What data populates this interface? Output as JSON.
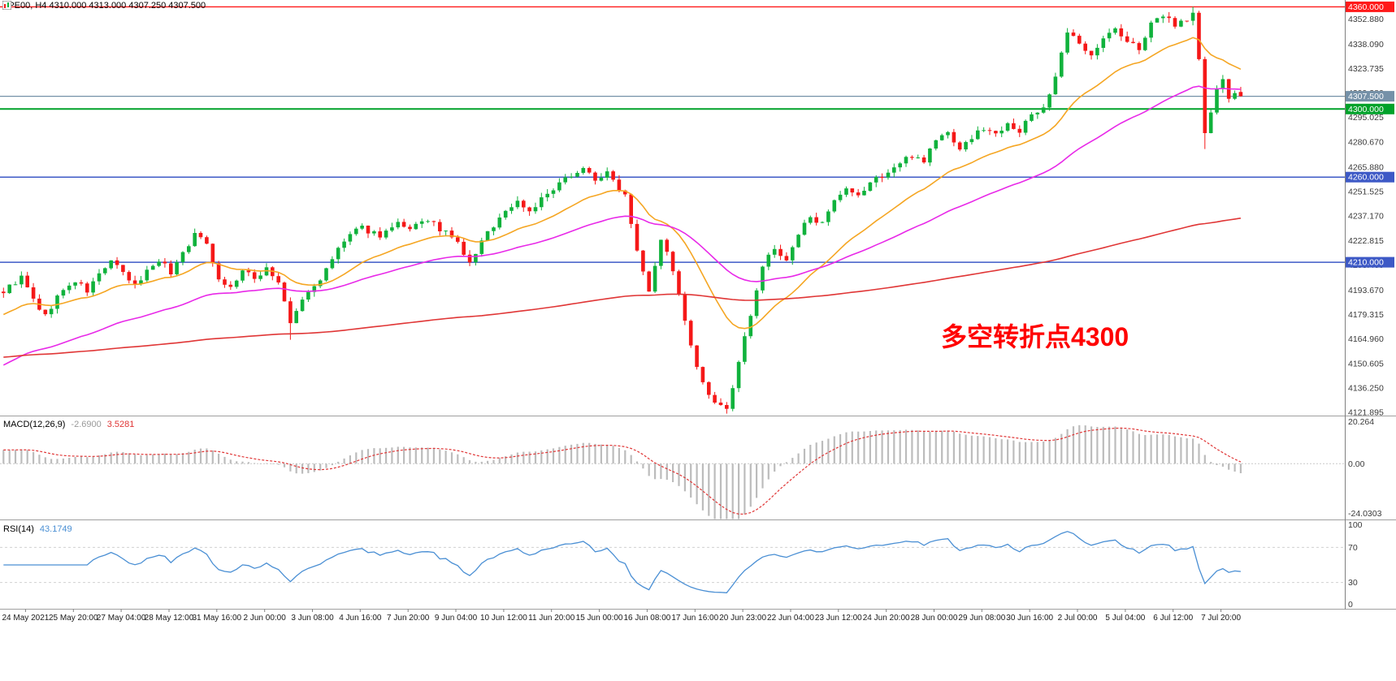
{
  "window": {
    "symbol_info": "SPE00, H4 4310.000 4313.000 4307.250 4307.500"
  },
  "annotation": {
    "text": "多空转折点4300"
  },
  "macd_panel": {
    "title": "MACD(12,26,9)",
    "main_value": "-2.6900",
    "signal_value": "3.5281"
  },
  "rsi_panel": {
    "title": "RSI(14)",
    "value": "43.1749"
  },
  "chart_data": {
    "type": "candlestick",
    "symbol": "SPE00",
    "timeframe": "H4",
    "last_ohlc": {
      "open": 4310.0,
      "high": 4313.0,
      "low": 4307.25,
      "close": 4307.5
    },
    "ylim": [
      4120.0,
      4364.0
    ],
    "up_color": "#10b23c",
    "down_color": "#f51818",
    "price_ticks": [
      "4352.880",
      "4338.090",
      "4323.735",
      "4309.380",
      "4295.025",
      "4280.670",
      "4265.880",
      "4251.525",
      "4237.170",
      "4222.815",
      "4208.460",
      "4193.670",
      "4179.315",
      "4164.960",
      "4150.605",
      "4136.250",
      "4121.895"
    ],
    "levels": [
      {
        "price": 4360.0,
        "label": "4360.000",
        "color": "#ff1a1a",
        "width": 1.4,
        "type": "resistance-line"
      },
      {
        "price": 4307.5,
        "label": "4307.500",
        "color": "#7591a8",
        "width": 1.2,
        "type": "last-price-line"
      },
      {
        "price": 4300.0,
        "label": "4300.000",
        "color": "#00a22a",
        "width": 2.0,
        "type": "pivot-line"
      },
      {
        "price": 4260.0,
        "label": "4260.000",
        "color": "#3d59c6",
        "width": 1.5,
        "type": "support-line"
      },
      {
        "price": 4210.0,
        "label": "4210.000",
        "color": "#3d59c6",
        "width": 1.5,
        "type": "support-line"
      }
    ],
    "x_labels": [
      "24 May 2021",
      "25 May 20:00",
      "27 May 04:00",
      "28 May 12:00",
      "31 May 16:00",
      "2 Jun 00:00",
      "3 Jun 08:00",
      "4 Jun 16:00",
      "7 Jun 20:00",
      "9 Jun 04:00",
      "10 Jun 12:00",
      "11 Jun 20:00",
      "15 Jun 00:00",
      "16 Jun 08:00",
      "17 Jun 16:00",
      "20 Jun 23:00",
      "22 Jun 04:00",
      "23 Jun 12:00",
      "24 Jun 20:00",
      "28 Jun 00:00",
      "29 Jun 08:00",
      "30 Jun 16:00",
      "2 Jul 00:00",
      "5 Jul 04:00",
      "6 Jul 12:00",
      "7 Jul 20:00"
    ],
    "num_candles": 208,
    "candles_per_label": 8,
    "seed": 9,
    "price_path": [
      [
        0,
        4193
      ],
      [
        3,
        4201
      ],
      [
        5,
        4188
      ],
      [
        7,
        4178
      ],
      [
        9,
        4190
      ],
      [
        12,
        4199
      ],
      [
        14,
        4193
      ],
      [
        16,
        4203
      ],
      [
        18,
        4211
      ],
      [
        20,
        4203
      ],
      [
        22,
        4196
      ],
      [
        24,
        4205
      ],
      [
        26,
        4212
      ],
      [
        28,
        4204
      ],
      [
        30,
        4216
      ],
      [
        32,
        4226
      ],
      [
        34,
        4222
      ],
      [
        36,
        4200
      ],
      [
        38,
        4195
      ],
      [
        40,
        4205
      ],
      [
        42,
        4200
      ],
      [
        44,
        4207
      ],
      [
        46,
        4198
      ],
      [
        48,
        4174
      ],
      [
        50,
        4188
      ],
      [
        52,
        4196
      ],
      [
        54,
        4205
      ],
      [
        56,
        4218
      ],
      [
        58,
        4226
      ],
      [
        60,
        4230
      ],
      [
        63,
        4226
      ],
      [
        66,
        4232
      ],
      [
        68,
        4228
      ],
      [
        70,
        4235
      ],
      [
        72,
        4232
      ],
      [
        74,
        4227
      ],
      [
        76,
        4221
      ],
      [
        78,
        4209
      ],
      [
        80,
        4222
      ],
      [
        82,
        4232
      ],
      [
        84,
        4240
      ],
      [
        86,
        4246
      ],
      [
        88,
        4240
      ],
      [
        90,
        4247
      ],
      [
        92,
        4252
      ],
      [
        95,
        4262
      ],
      [
        97,
        4265
      ],
      [
        99,
        4259
      ],
      [
        101,
        4262
      ],
      [
        104,
        4250
      ],
      [
        106,
        4218
      ],
      [
        108,
        4194
      ],
      [
        110,
        4224
      ],
      [
        112,
        4206
      ],
      [
        113,
        4190
      ],
      [
        115,
        4160
      ],
      [
        117,
        4138
      ],
      [
        119,
        4126
      ],
      [
        121,
        4124
      ],
      [
        123,
        4150
      ],
      [
        125,
        4180
      ],
      [
        127,
        4208
      ],
      [
        129,
        4218
      ],
      [
        131,
        4210
      ],
      [
        133,
        4226
      ],
      [
        135,
        4238
      ],
      [
        137,
        4232
      ],
      [
        139,
        4245
      ],
      [
        141,
        4252
      ],
      [
        143,
        4248
      ],
      [
        145,
        4257
      ],
      [
        148,
        4263
      ],
      [
        150,
        4268
      ],
      [
        152,
        4273
      ],
      [
        154,
        4270
      ],
      [
        156,
        4282
      ],
      [
        158,
        4286
      ],
      [
        160,
        4277
      ],
      [
        162,
        4283
      ],
      [
        164,
        4289
      ],
      [
        166,
        4285
      ],
      [
        168,
        4293
      ],
      [
        170,
        4286
      ],
      [
        172,
        4297
      ],
      [
        174,
        4301
      ],
      [
        176,
        4318
      ],
      [
        178,
        4345
      ],
      [
        180,
        4338
      ],
      [
        182,
        4333
      ],
      [
        184,
        4341
      ],
      [
        186,
        4347
      ],
      [
        188,
        4339
      ],
      [
        190,
        4336
      ],
      [
        192,
        4349
      ],
      [
        194,
        4355
      ],
      [
        196,
        4350
      ],
      [
        198,
        4353
      ],
      [
        199,
        4356
      ],
      [
        200,
        4330
      ],
      [
        201,
        4285
      ],
      [
        202,
        4298
      ],
      [
        203,
        4312
      ],
      [
        204,
        4316
      ],
      [
        205,
        4305
      ],
      [
        206,
        4310
      ],
      [
        207,
        4307.5
      ]
    ],
    "extremes": [
      {
        "i": 48,
        "low": 4164.5
      },
      {
        "i": 121,
        "low": 4121.895
      },
      {
        "i": 178,
        "high": 4347.5
      },
      {
        "i": 199,
        "high": 4360.0
      },
      {
        "i": 201,
        "low": 4276.5
      }
    ],
    "moving_averages": [
      {
        "name": "ma-fast",
        "color": "#f5a623",
        "period": 20,
        "seed": 4178
      },
      {
        "name": "ma-mid",
        "color": "#e829e8",
        "period": 52,
        "seed": 4148
      },
      {
        "name": "ma-slow",
        "color": "#e03636",
        "period": 280,
        "seed": 4154
      }
    ],
    "macd": {
      "fast": 12,
      "slow": 26,
      "signal_period": 9,
      "ylim": [
        -27,
        22.5
      ],
      "ticks": [
        {
          "v": 20.264,
          "label": "20.264"
        },
        {
          "v": 0,
          "label": "0.00"
        },
        {
          "v": -24.0303,
          "label": "-24.0303"
        }
      ],
      "hist_color": "#bcbcbc",
      "signal_color": "#e03636",
      "last_main": -2.69,
      "last_signal": 3.5281
    },
    "rsi": {
      "period": 14,
      "ylim": [
        0,
        100
      ],
      "ticks": [
        {
          "v": 100,
          "label": "100"
        },
        {
          "v": 70,
          "label": "70"
        },
        {
          "v": 30,
          "label": "30"
        },
        {
          "v": 0,
          "label": "0"
        }
      ],
      "levels": [
        70,
        30
      ],
      "line_color": "#4a8fd4",
      "last_value": 43.1749
    }
  }
}
